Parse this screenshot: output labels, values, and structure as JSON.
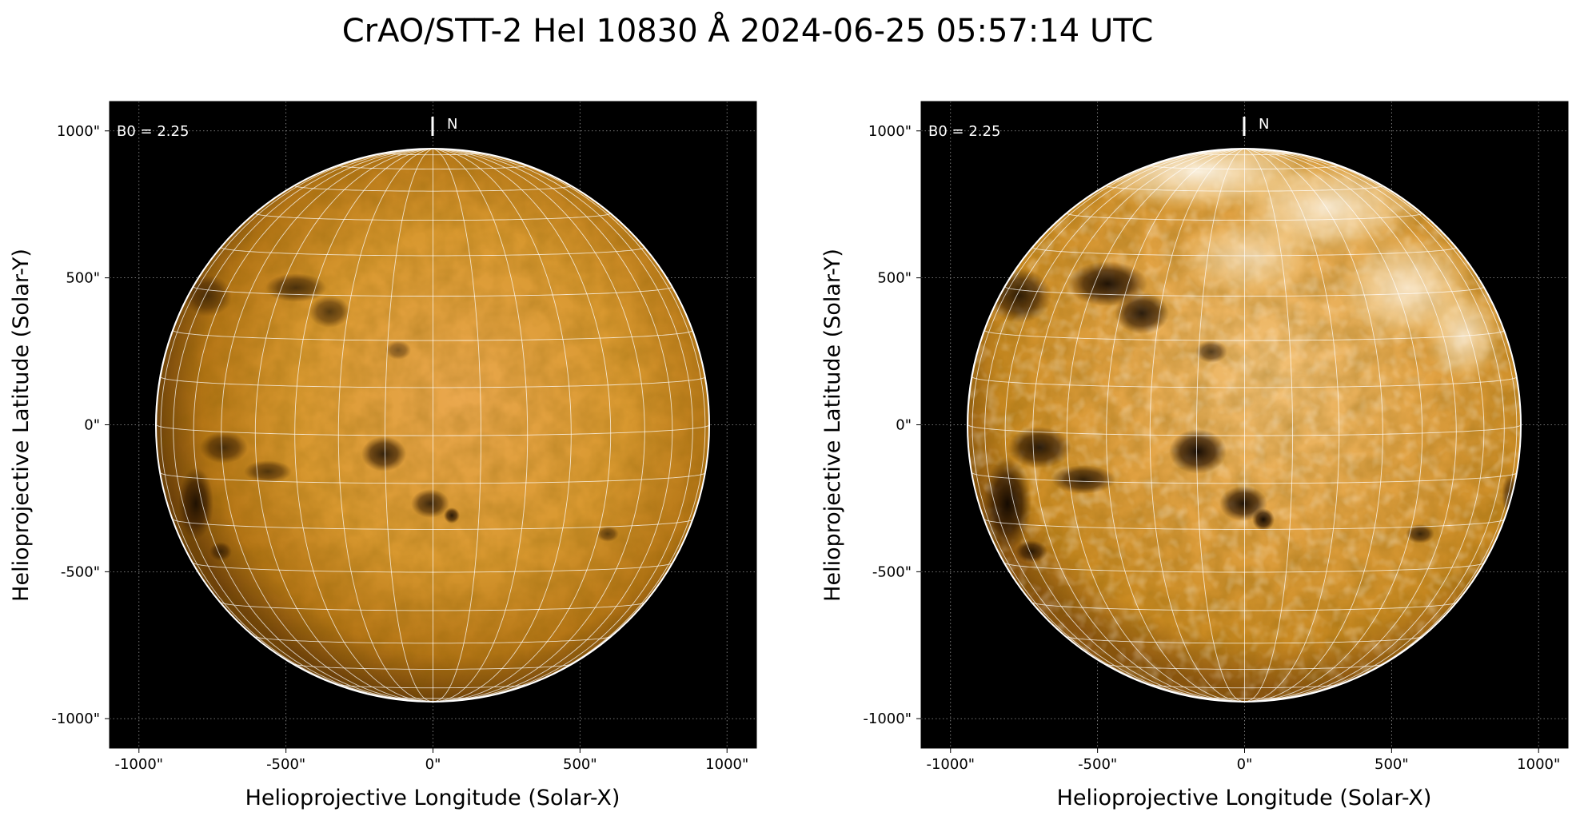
{
  "figure": {
    "title": "CrAO/STT-2 HeI 10830 Å 2024-06-25 05:57:14 UTC"
  },
  "panels": [
    {
      "name": "left",
      "b0_label": "B0 = 2.25",
      "north_label": "N",
      "xlabel": "Helioprojective Longitude (Solar-X)",
      "ylabel": "Helioprojective Latitude (Solar-Y)",
      "x_ticks": [
        "-1000\"",
        "-500\"",
        "0\"",
        "500\"",
        "1000\""
      ],
      "y_ticks": [
        "1000\"",
        "500\"",
        "0\"",
        "-500\"",
        "-1000\""
      ],
      "contrast": "normal"
    },
    {
      "name": "right",
      "b0_label": "B0 = 2.25",
      "north_label": "N",
      "xlabel": "Helioprojective Longitude (Solar-X)",
      "ylabel": "Helioprojective Latitude (Solar-Y)",
      "x_ticks": [
        "-1000\"",
        "-500\"",
        "0\"",
        "500\"",
        "1000\""
      ],
      "y_ticks": [
        "1000\"",
        "500\"",
        "0\"",
        "-500\"",
        "-1000\""
      ],
      "contrast": "high"
    }
  ],
  "axes": {
    "x_tick_values": [
      -1000,
      -500,
      0,
      500,
      1000
    ],
    "y_tick_values": [
      1000,
      500,
      0,
      -500,
      -1000
    ],
    "xlim": [
      -1100,
      1100
    ],
    "ylim": [
      -1100,
      1100
    ],
    "solar_radius_arcsec": 940,
    "b0_deg": 2.25
  },
  "colors": {
    "background": "#000000",
    "disk_center": "#e8a44a",
    "disk_mid": "#d08f2c",
    "disk_limb": "#7a4a0c",
    "dark_feature": "#120800",
    "bright_feature": "#fff3dc",
    "grid": "#ffffff",
    "dotted_grid": "#9a9a9a"
  }
}
